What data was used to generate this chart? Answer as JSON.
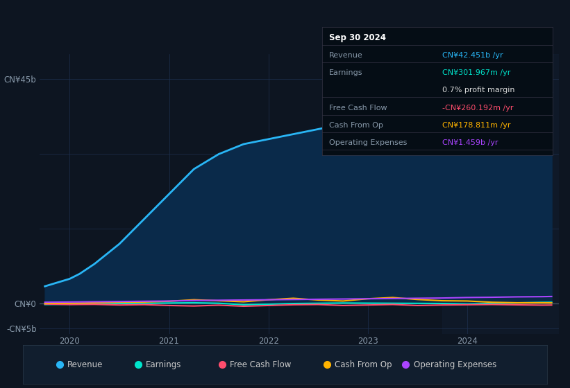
{
  "background_color": "#0d1521",
  "plot_bg_color": "#0d1521",
  "grid_color": "#1e3050",
  "revenue_color": "#29b6f6",
  "revenue_fill": "#0a2a4a",
  "earnings_color": "#00e5cc",
  "fcf_color": "#ff4d6d",
  "cashfromop_color": "#ffb300",
  "opex_color": "#aa44ff",
  "zero_line_color": "#cccccc",
  "label_color": "#8899aa",
  "ytick_labels": [
    "-CN¥5b",
    "CN¥0",
    "CN¥45b"
  ],
  "ytick_values": [
    -5000000000,
    0,
    45000000000
  ],
  "ylim_min": -6000000000,
  "ylim_max": 50000000000,
  "xlim_min": 2019.7,
  "xlim_max": 2024.92,
  "xtick_positions": [
    2020,
    2021,
    2022,
    2023,
    2024
  ],
  "xtick_labels": [
    "2020",
    "2021",
    "2022",
    "2023",
    "2024"
  ],
  "hgrid_values": [
    -5000000000,
    0,
    15000000000,
    30000000000,
    45000000000
  ],
  "vgrid_values": [
    2020,
    2021,
    2022,
    2023,
    2024
  ],
  "legend_items": [
    {
      "label": "Revenue",
      "color": "#29b6f6"
    },
    {
      "label": "Earnings",
      "color": "#00e5cc"
    },
    {
      "label": "Free Cash Flow",
      "color": "#ff4d6d"
    },
    {
      "label": "Cash From Op",
      "color": "#ffb300"
    },
    {
      "label": "Operating Expenses",
      "color": "#aa44ff"
    }
  ],
  "revenue_x": [
    2019.75,
    2020.0,
    2020.1,
    2020.25,
    2020.5,
    2020.75,
    2021.0,
    2021.25,
    2021.5,
    2021.75,
    2022.0,
    2022.25,
    2022.5,
    2022.75,
    2023.0,
    2023.1,
    2023.25,
    2023.5,
    2023.6,
    2023.75,
    2024.0,
    2024.25,
    2024.5,
    2024.75,
    2024.85
  ],
  "revenue_y": [
    3500000000.0,
    5000000000.0,
    6000000000.0,
    8000000000.0,
    12000000000.0,
    17000000000.0,
    22000000000.0,
    27000000000.0,
    30000000000.0,
    32000000000.0,
    33000000000.0,
    34000000000.0,
    35000000000.0,
    36000000000.0,
    37500000000.0,
    39000000000.0,
    41500000000.0,
    43500000000.0,
    43800000000.0,
    42500000000.0,
    38500000000.0,
    38000000000.0,
    39500000000.0,
    41500000000.0,
    42451000000.0
  ],
  "earnings_x": [
    2019.75,
    2020.0,
    2020.25,
    2020.5,
    2020.75,
    2021.0,
    2021.25,
    2021.5,
    2021.75,
    2022.0,
    2022.25,
    2022.5,
    2022.75,
    2023.0,
    2023.25,
    2023.5,
    2023.75,
    2024.0,
    2024.25,
    2024.5,
    2024.75,
    2024.85
  ],
  "earnings_y": [
    -150000000.0,
    -100000000.0,
    -50000000.0,
    50000000.0,
    100000000.0,
    150000000.0,
    200000000.0,
    100000000.0,
    -200000000.0,
    -100000000.0,
    50000000.0,
    100000000.0,
    150000000.0,
    120000000.0,
    100000000.0,
    80000000.0,
    50000000.0,
    -50000000.0,
    80000000.0,
    180000000.0,
    280000000.0,
    302000000.0
  ],
  "fcf_x": [
    2019.75,
    2020.0,
    2020.25,
    2020.5,
    2020.75,
    2021.0,
    2021.25,
    2021.5,
    2021.75,
    2022.0,
    2022.25,
    2022.5,
    2022.75,
    2023.0,
    2023.25,
    2023.5,
    2023.75,
    2024.0,
    2024.25,
    2024.5,
    2024.75,
    2024.85
  ],
  "fcf_y": [
    -50000000.0,
    -150000000.0,
    -120000000.0,
    -250000000.0,
    -180000000.0,
    -350000000.0,
    -450000000.0,
    -280000000.0,
    -500000000.0,
    -350000000.0,
    -200000000.0,
    -150000000.0,
    -350000000.0,
    -250000000.0,
    -150000000.0,
    -350000000.0,
    -250000000.0,
    -200000000.0,
    -150000000.0,
    -220000000.0,
    -280000000.0,
    -260000000.0
  ],
  "cashfromop_x": [
    2019.75,
    2020.0,
    2020.25,
    2020.5,
    2020.75,
    2021.0,
    2021.25,
    2021.5,
    2021.75,
    2022.0,
    2022.25,
    2022.5,
    2022.75,
    2023.0,
    2023.25,
    2023.5,
    2023.75,
    2024.0,
    2024.25,
    2024.5,
    2024.75,
    2024.85
  ],
  "cashfromop_y": [
    50000000.0,
    100000000.0,
    200000000.0,
    300000000.0,
    350000000.0,
    500000000.0,
    800000000.0,
    600000000.0,
    400000000.0,
    800000000.0,
    1100000000.0,
    750000000.0,
    550000000.0,
    1000000000.0,
    1250000000.0,
    850000000.0,
    600000000.0,
    550000000.0,
    300000000.0,
    200000000.0,
    200000000.0,
    179000000.0
  ],
  "opex_x": [
    2019.75,
    2020.0,
    2020.25,
    2020.5,
    2020.75,
    2021.0,
    2021.25,
    2021.5,
    2021.75,
    2022.0,
    2022.25,
    2022.5,
    2022.75,
    2023.0,
    2023.25,
    2023.5,
    2023.75,
    2024.0,
    2024.25,
    2024.5,
    2024.75,
    2024.85
  ],
  "opex_y": [
    300000000.0,
    350000000.0,
    400000000.0,
    450000000.0,
    500000000.0,
    550000000.0,
    650000000.0,
    700000000.0,
    750000000.0,
    800000000.0,
    850000000.0,
    900000000.0,
    950000000.0,
    1000000000.0,
    1050000000.0,
    1100000000.0,
    1150000000.0,
    1250000000.0,
    1300000000.0,
    1380000000.0,
    1420000000.0,
    1459000000.0
  ],
  "tooltip": {
    "title": "Sep 30 2024",
    "rows": [
      {
        "label": "Revenue",
        "value": "CN¥42.451b /yr",
        "label_color": "#8899aa",
        "value_color": "#29b6f6"
      },
      {
        "label": "Earnings",
        "value": "CN¥301.967m /yr",
        "label_color": "#8899aa",
        "value_color": "#00e5cc"
      },
      {
        "label": "",
        "value": "0.7% profit margin",
        "label_color": "#8899aa",
        "value_color": "#dddddd"
      },
      {
        "label": "Free Cash Flow",
        "value": "-CN¥260.192m /yr",
        "label_color": "#8899aa",
        "value_color": "#ff4d6d"
      },
      {
        "label": "Cash From Op",
        "value": "CN¥178.811m /yr",
        "label_color": "#8899aa",
        "value_color": "#ffb300"
      },
      {
        "label": "Operating Expenses",
        "value": "CN¥1.459b /yr",
        "label_color": "#8899aa",
        "value_color": "#aa44ff"
      }
    ]
  }
}
